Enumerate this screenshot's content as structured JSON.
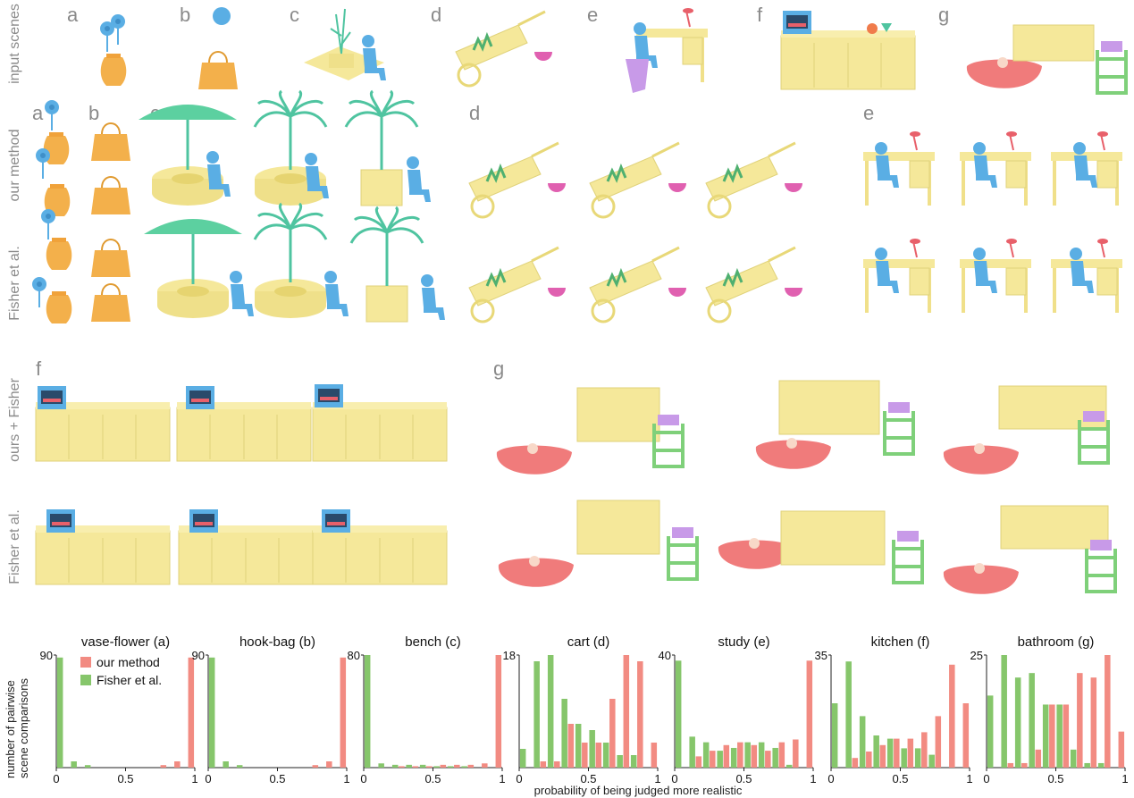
{
  "row_labels": {
    "input": "input scenes",
    "ours": "our method",
    "fisher1": "Fisher et al.",
    "ours_fisher": "ours + Fisher",
    "fisher2": "Fisher et al."
  },
  "panel_letters": {
    "top": [
      "a",
      "b",
      "c",
      "d",
      "e",
      "f",
      "g"
    ],
    "middle": [
      "a",
      "b",
      "c",
      "d",
      "e"
    ],
    "bottom": [
      "f",
      "g"
    ]
  },
  "colors": {
    "yellow": "#f5e89a",
    "blue": "#5aaee4",
    "green": "#7fd07a",
    "pink": "#f07b7b",
    "magenta": "#e060b0",
    "purple": "#c89ae8",
    "orange": "#f3b04b",
    "teal": "#4fc4a0",
    "red_bar": "#f28b82",
    "green_bar": "#86c66b"
  },
  "axes": {
    "ylabel": "number of pairwise scene comparisons",
    "xlabel": "probability of being judged more realistic",
    "xtick_labels": [
      "0",
      "0.5",
      "1"
    ]
  },
  "chart_data": [
    {
      "type": "bar",
      "title": "vase-flower (a)",
      "ymax": 90,
      "ymax_label": "90",
      "xlim": [
        0,
        1
      ],
      "x": [
        0.05,
        0.15,
        0.25,
        0.35,
        0.45,
        0.55,
        0.65,
        0.75,
        0.85,
        0.95
      ],
      "series": [
        {
          "name": "our method",
          "values": [
            0,
            0,
            0,
            0,
            0,
            0,
            0,
            2,
            5,
            88
          ]
        },
        {
          "name": "Fisher et al.",
          "values": [
            88,
            5,
            2,
            0,
            0,
            0,
            0,
            0,
            0,
            0
          ]
        }
      ]
    },
    {
      "type": "bar",
      "title": "hook-bag (b)",
      "ymax": 90,
      "ymax_label": "90",
      "xlim": [
        0,
        1
      ],
      "x": [
        0.05,
        0.15,
        0.25,
        0.35,
        0.45,
        0.55,
        0.65,
        0.75,
        0.85,
        0.95
      ],
      "series": [
        {
          "name": "our method",
          "values": [
            0,
            0,
            0,
            0,
            0,
            0,
            0,
            2,
            5,
            88
          ]
        },
        {
          "name": "Fisher et al.",
          "values": [
            88,
            5,
            2,
            0,
            0,
            0,
            0,
            0,
            0,
            0
          ]
        }
      ]
    },
    {
      "type": "bar",
      "title": "bench (c)",
      "ymax": 80,
      "ymax_label": "80",
      "xlim": [
        0,
        1
      ],
      "x": [
        0.05,
        0.15,
        0.25,
        0.35,
        0.45,
        0.55,
        0.65,
        0.75,
        0.85,
        0.95
      ],
      "series": [
        {
          "name": "our method",
          "values": [
            0,
            0,
            1,
            1,
            1,
            2,
            2,
            2,
            3,
            80
          ]
        },
        {
          "name": "Fisher et al.",
          "values": [
            80,
            3,
            2,
            2,
            2,
            1,
            1,
            1,
            0,
            0
          ]
        }
      ]
    },
    {
      "type": "bar",
      "title": "cart (d)",
      "ymax": 18,
      "ymax_label": "18",
      "xlim": [
        0,
        1
      ],
      "x": [
        0.05,
        0.15,
        0.25,
        0.35,
        0.45,
        0.55,
        0.65,
        0.75,
        0.85,
        0.95
      ],
      "series": [
        {
          "name": "our method",
          "values": [
            0,
            1,
            1,
            7,
            4,
            4,
            11,
            18,
            17,
            4
          ]
        },
        {
          "name": "Fisher et al.",
          "values": [
            3,
            17,
            18,
            11,
            7,
            6,
            4,
            2,
            2,
            0
          ]
        }
      ]
    },
    {
      "type": "bar",
      "title": "study (e)",
      "ymax": 40,
      "ymax_label": "40",
      "xlim": [
        0,
        1
      ],
      "x": [
        0.05,
        0.15,
        0.25,
        0.35,
        0.45,
        0.55,
        0.65,
        0.75,
        0.85,
        0.95
      ],
      "series": [
        {
          "name": "our method",
          "values": [
            0,
            4,
            6,
            8,
            9,
            8,
            6,
            9,
            10,
            38
          ]
        },
        {
          "name": "Fisher et al.",
          "values": [
            38,
            11,
            9,
            6,
            7,
            9,
            9,
            7,
            1,
            0
          ]
        }
      ]
    },
    {
      "type": "bar",
      "title": "kitchen (f)",
      "ymax": 35,
      "ymax_label": "35",
      "xlim": [
        0,
        1
      ],
      "x": [
        0.05,
        0.15,
        0.25,
        0.35,
        0.45,
        0.55,
        0.65,
        0.75,
        0.85,
        0.95
      ],
      "series": [
        {
          "name": "our method",
          "values": [
            0,
            3,
            5,
            7,
            9,
            9,
            11,
            16,
            32,
            20
          ]
        },
        {
          "name": "Fisher et al.",
          "values": [
            20,
            33,
            16,
            10,
            9,
            6,
            6,
            4,
            0,
            0
          ]
        }
      ]
    },
    {
      "type": "bar",
      "title": "bathroom (g)",
      "ymax": 25,
      "ymax_label": "25",
      "xlim": [
        0,
        1
      ],
      "x": [
        0.05,
        0.15,
        0.25,
        0.35,
        0.45,
        0.55,
        0.65,
        0.75,
        0.85,
        0.95
      ],
      "series": [
        {
          "name": "our method",
          "values": [
            0,
            1,
            1,
            4,
            14,
            14,
            21,
            20,
            25,
            8
          ]
        },
        {
          "name": "Fisher et al.",
          "values": [
            16,
            25,
            20,
            21,
            14,
            14,
            4,
            1,
            1,
            0
          ]
        }
      ]
    }
  ],
  "legend": {
    "ours": "our method",
    "fisher": "Fisher et al."
  }
}
